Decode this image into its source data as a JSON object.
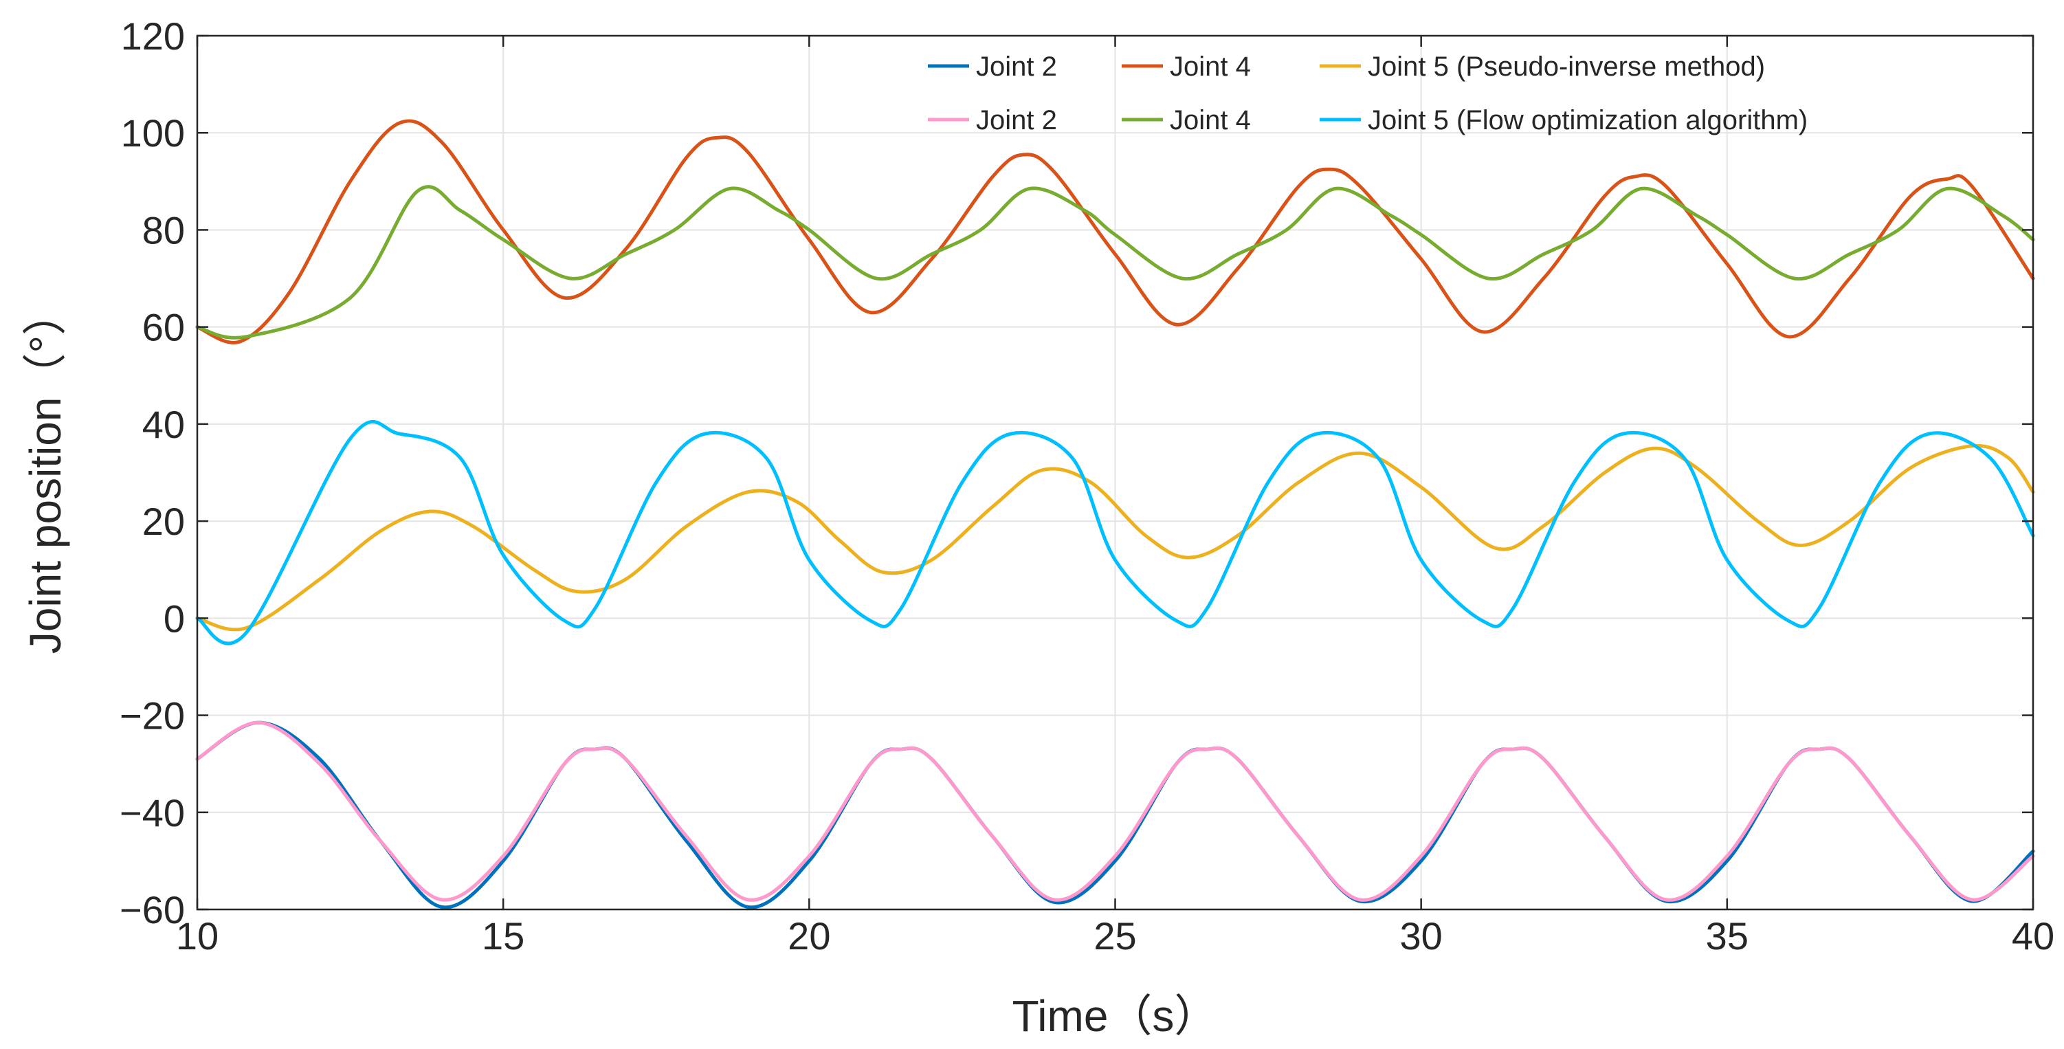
{
  "chart_data": {
    "type": "line",
    "title": "",
    "xlabel": "Time（s）",
    "ylabel": "Joint position（°）",
    "xlim": [
      10,
      40
    ],
    "ylim": [
      -60,
      120
    ],
    "x_ticks": [
      10,
      15,
      20,
      25,
      30,
      35,
      40
    ],
    "y_ticks": [
      -60,
      -40,
      -20,
      0,
      20,
      40,
      60,
      80,
      100,
      120
    ],
    "x_tick_labels": [
      "10",
      "15",
      "20",
      "25",
      "30",
      "35",
      "40"
    ],
    "y_tick_labels": [
      "−60",
      "−40",
      "−20",
      "0",
      "20",
      "40",
      "60",
      "80",
      "100",
      "120"
    ],
    "grid": true,
    "legend_position": "top-right",
    "legend_groups": [
      {
        "suffix": "Joint 5 (Pseudo-inverse method)"
      },
      {
        "suffix": "Joint 5 (Flow optimization algorithm)"
      }
    ],
    "series": [
      {
        "name": "Joint 2",
        "group": "Pseudo-inverse method",
        "color": "#0072BD",
        "x": [
          10,
          11,
          12,
          13,
          14,
          15,
          16,
          16.5,
          17,
          18,
          19,
          20,
          21,
          21.5,
          22,
          23,
          24,
          25,
          26,
          26.5,
          27,
          28,
          29,
          30,
          31,
          31.5,
          32,
          33,
          34,
          35,
          36,
          36.5,
          37,
          38,
          39,
          40
        ],
        "y": [
          -29,
          -21.5,
          -29,
          -46,
          -59.5,
          -50,
          -30,
          -27,
          -29,
          -46,
          -59.5,
          -50,
          -30,
          -27,
          -29,
          -45,
          -58.5,
          -50,
          -30,
          -27,
          -29,
          -45,
          -58.3,
          -50,
          -30,
          -27,
          -29,
          -45,
          -58.3,
          -50,
          -30,
          -27,
          -29,
          -45,
          -58.3,
          -48
        ]
      },
      {
        "name": "Joint 4",
        "group": "Pseudo-inverse method",
        "color": "#D95319",
        "x": [
          10,
          10.7,
          11.5,
          12.5,
          13.3,
          14,
          15,
          16,
          17,
          18,
          18.5,
          19,
          20,
          21,
          22,
          23,
          23.5,
          24,
          25,
          26,
          27,
          28,
          28.5,
          29,
          30,
          31,
          32,
          33,
          33.5,
          34,
          35,
          36,
          37,
          38,
          38.6,
          39,
          40
        ],
        "y": [
          60,
          57,
          67,
          90,
          102,
          98,
          80,
          66,
          76,
          95,
          99,
          96,
          78,
          63,
          74,
          91,
          95.5,
          92,
          75,
          60.5,
          72,
          89,
          92.5,
          89,
          74,
          59,
          70,
          87,
          91,
          89,
          73,
          58,
          70,
          87,
          90.5,
          89,
          70
        ]
      },
      {
        "name": "Joint 5",
        "group": "Pseudo-inverse method",
        "color": "#EDB120",
        "x": [
          10,
          10.8,
          12,
          13,
          13.8,
          14.5,
          15.5,
          16.2,
          17,
          18,
          19,
          19.8,
          20.5,
          21.2,
          22,
          23,
          23.8,
          24.6,
          25.5,
          26.2,
          27,
          28,
          29,
          30,
          31.2,
          32,
          33,
          33.8,
          34.5,
          35.5,
          36.2,
          37,
          38,
          39,
          39.6,
          40
        ],
        "y": [
          0,
          -2,
          8,
          18,
          22,
          19,
          10,
          5.5,
          8,
          19,
          26,
          24,
          16,
          9.5,
          12,
          23,
          30.5,
          28,
          17,
          12.5,
          17,
          28,
          34,
          27,
          14.5,
          19,
          30,
          35,
          31,
          20,
          15,
          20,
          31,
          35.5,
          33,
          26
        ]
      },
      {
        "name": "Joint 2",
        "group": "Flow optimization algorithm",
        "color": "#FF99CC",
        "x": [
          10,
          11,
          12,
          13,
          14,
          15,
          16,
          16.5,
          17,
          18,
          19,
          20,
          21,
          21.5,
          22,
          23,
          24,
          25,
          26,
          26.5,
          27,
          28,
          29,
          30,
          31,
          31.5,
          32,
          33,
          34,
          35,
          36,
          36.5,
          37,
          38,
          39,
          40
        ],
        "y": [
          -29,
          -21.5,
          -30,
          -46,
          -58,
          -49,
          -30,
          -27,
          -29,
          -45,
          -58,
          -49,
          -30,
          -27,
          -29,
          -45,
          -58,
          -49,
          -30,
          -27,
          -29,
          -45,
          -58,
          -49,
          -30,
          -27,
          -29,
          -45,
          -58,
          -49,
          -30,
          -27,
          -29,
          -45,
          -58,
          -49
        ]
      },
      {
        "name": "Joint 4",
        "group": "Flow optimization algorithm",
        "color": "#77AC30",
        "x": [
          10,
          10.8,
          12.5,
          13.6,
          14.3,
          15,
          16.1,
          17,
          17.8,
          18.7,
          19.5,
          20,
          21.1,
          22,
          22.8,
          23.6,
          24.5,
          25,
          26.1,
          27,
          27.8,
          28.6,
          29.5,
          30,
          31.1,
          32,
          32.8,
          33.6,
          34.5,
          35,
          36.1,
          37,
          37.8,
          38.6,
          39.5,
          40
        ],
        "y": [
          60,
          58,
          66,
          88,
          84,
          78,
          70,
          75,
          80,
          88.5,
          84,
          80,
          70,
          75,
          80,
          88.5,
          84,
          79,
          70,
          75,
          80,
          88.5,
          83,
          79,
          70,
          75,
          80,
          88.5,
          83,
          79,
          70,
          75,
          80,
          88.5,
          83,
          78
        ]
      },
      {
        "name": "Joint 5",
        "group": "Flow optimization algorithm",
        "color": "#00BFFF",
        "x": [
          10,
          10.8,
          12.5,
          13.3,
          14.3,
          15,
          16,
          16.5,
          17.5,
          18.3,
          19.3,
          20,
          21,
          21.5,
          22.5,
          23.3,
          24.3,
          25,
          26,
          26.5,
          27.5,
          28.3,
          29.3,
          30,
          31,
          31.5,
          32.5,
          33.3,
          34.3,
          35,
          36,
          36.5,
          37.5,
          38.3,
          39.3,
          40
        ],
        "y": [
          0,
          -3,
          37,
          38,
          33,
          13,
          -0.5,
          2,
          28,
          38,
          33,
          12,
          -0.5,
          2,
          28,
          38,
          33,
          12,
          -0.5,
          2,
          28,
          38,
          33,
          12,
          -0.5,
          2,
          28,
          38,
          33,
          12,
          -0.5,
          2,
          28,
          38,
          33,
          17
        ]
      }
    ]
  }
}
